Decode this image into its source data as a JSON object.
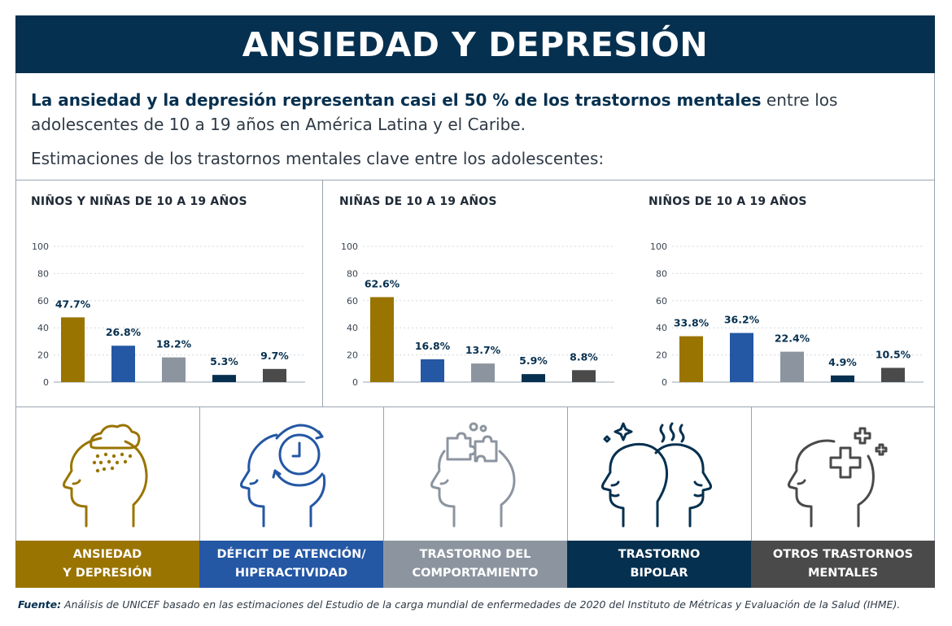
{
  "header": {
    "title": "ANSIEDAD Y DEPRESIÓN"
  },
  "intro": {
    "lead_bold": "La ansiedad y la depresión representan casi el 50 % de los trastornos mentales",
    "lead_rest": " entre los adolescentes de 10 a 19 años en América Latina y el Caribe.",
    "subtitle": "Estimaciones de los trastornos mentales clave entre los adolescentes:"
  },
  "colors": {
    "anxiety": "#9a7400",
    "adhd": "#2457a4",
    "behavior": "#8c959f",
    "bipolar": "#06304f",
    "other": "#4a4a4a"
  },
  "chart_data": [
    {
      "type": "bar",
      "title": "NIÑOS Y NIÑAS DE 10 A 19 AÑOS",
      "categories": [
        "Ansiedad y depresión",
        "Déficit de atención/hiperactividad",
        "Trastorno del comportamiento",
        "Trastorno bipolar",
        "Otros trastornos mentales"
      ],
      "values": [
        47.7,
        26.8,
        18.2,
        5.3,
        9.7
      ],
      "value_labels": [
        "47.7%",
        "26.8%",
        "18.2%",
        "5.3%",
        "9.7%"
      ],
      "ylim": [
        0,
        100
      ],
      "yticks": [
        "0",
        "20",
        "40",
        "60",
        "80",
        "100"
      ],
      "xlabel": "",
      "ylabel": ""
    },
    {
      "type": "bar",
      "title": "NIÑAS DE 10 A 19 AÑOS",
      "categories": [
        "Ansiedad y depresión",
        "Déficit de atención/hiperactividad",
        "Trastorno del comportamiento",
        "Trastorno bipolar",
        "Otros trastornos mentales"
      ],
      "values": [
        62.6,
        16.8,
        13.7,
        5.9,
        8.8
      ],
      "value_labels": [
        "62.6%",
        "16.8%",
        "13.7%",
        "5.9%",
        "8.8%"
      ],
      "ylim": [
        0,
        100
      ],
      "yticks": [
        "0",
        "20",
        "40",
        "60",
        "80",
        "100"
      ],
      "xlabel": "",
      "ylabel": ""
    },
    {
      "type": "bar",
      "title": "NIÑOS DE 10 A 19 AÑOS",
      "categories": [
        "Ansiedad y depresión",
        "Déficit de atención/hiperactividad",
        "Trastorno del comportamiento",
        "Trastorno bipolar",
        "Otros trastornos mentales"
      ],
      "values": [
        33.8,
        36.2,
        22.4,
        4.9,
        10.5
      ],
      "value_labels": [
        "33.8%",
        "36.2%",
        "22.4%",
        "4.9%",
        "10.5%"
      ],
      "ylim": [
        0,
        100
      ],
      "yticks": [
        "0",
        "20",
        "40",
        "60",
        "80",
        "100"
      ],
      "xlabel": "",
      "ylabel": ""
    }
  ],
  "legend": [
    {
      "line1": "ANSIEDAD",
      "line2": "Y DEPRESIÓN",
      "icon": "head-cloud-rain-icon"
    },
    {
      "line1": "DÉFICIT DE ATENCIÓN/",
      "line2": "HIPERACTIVIDAD",
      "icon": "head-clock-icon"
    },
    {
      "line1": "TRASTORNO DEL",
      "line2": "COMPORTAMIENTO",
      "icon": "head-puzzle-icon"
    },
    {
      "line1": "TRASTORNO",
      "line2": "BIPOLAR",
      "icon": "two-heads-icon"
    },
    {
      "line1": "OTROS TRASTORNOS",
      "line2": "MENTALES",
      "icon": "head-cross-icon"
    }
  ],
  "source": {
    "label": "Fuente:",
    "text": " Análisis de UNICEF basado en las estimaciones del Estudio de la carga mundial de enfermedades de 2020 del Instituto de Métricas y Evaluación de la Salud (IHME)."
  }
}
